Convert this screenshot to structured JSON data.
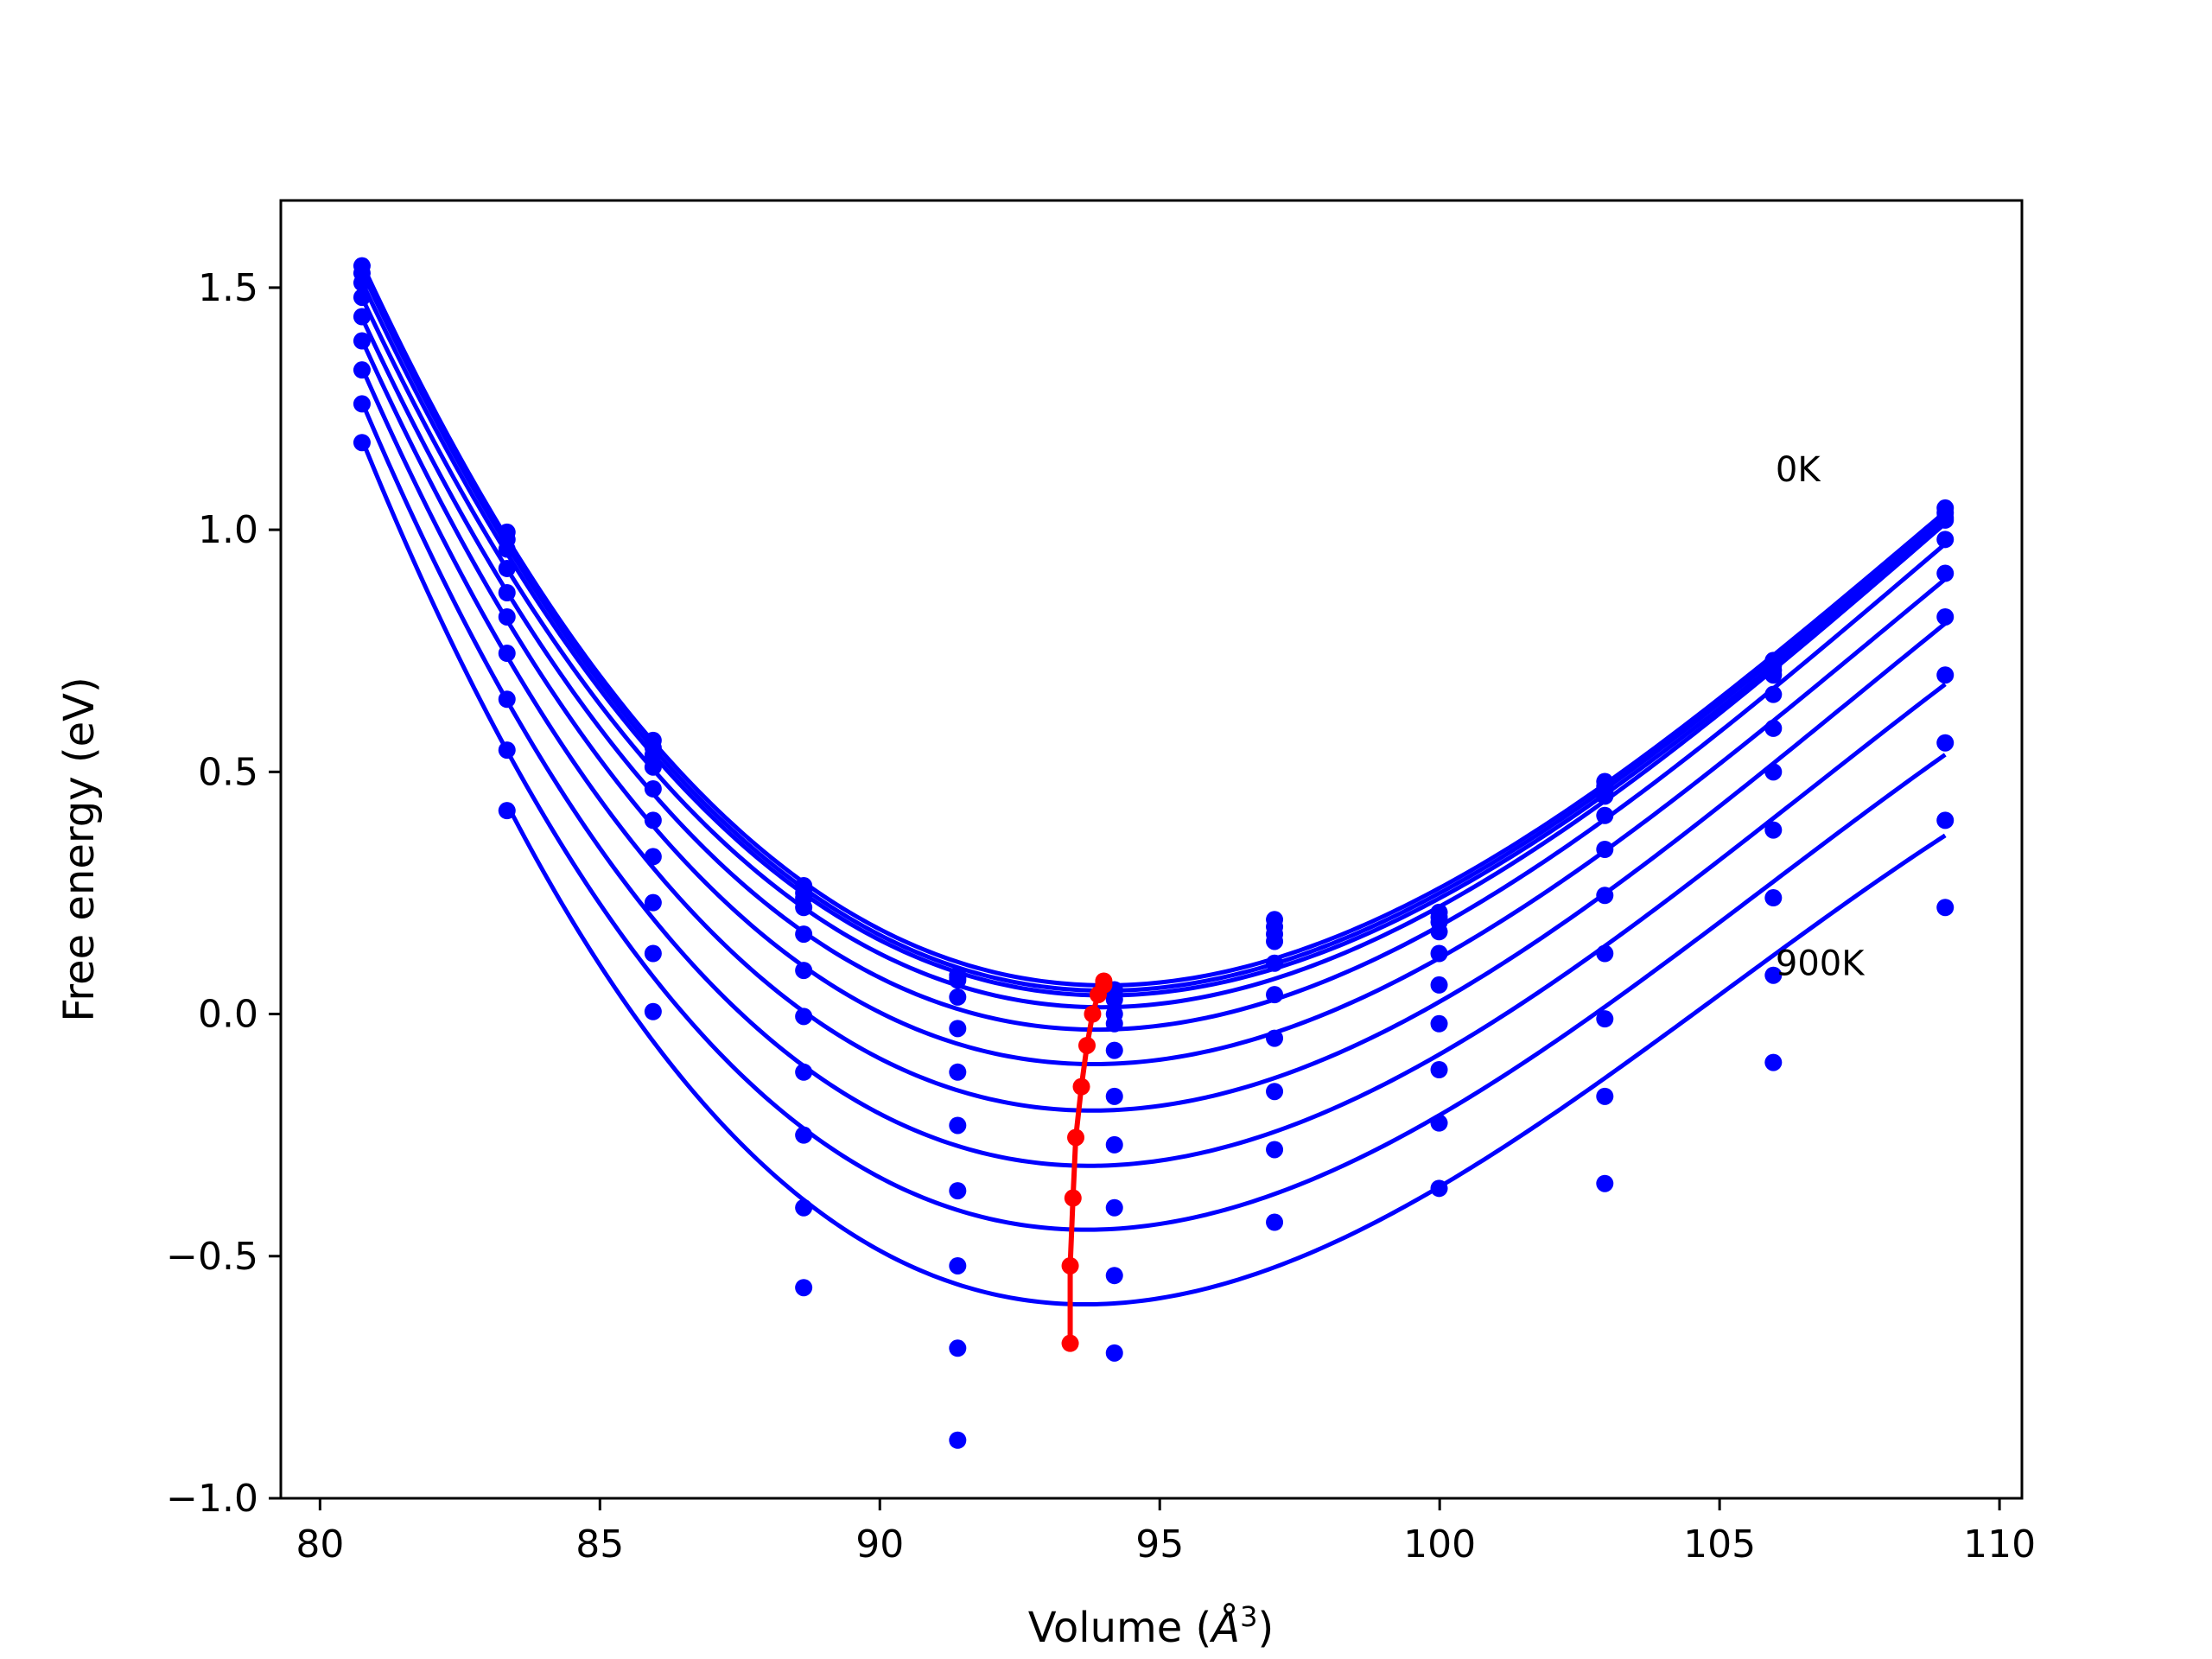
{
  "chart_data": {
    "type": "scatter",
    "title": "",
    "xlabel": "Volume (Å³)",
    "xlabel_base": "Volume (",
    "xlabel_unit": "Å",
    "xlabel_exp": "3",
    "xlabel_close": ")",
    "ylabel": "Free energy (eV)",
    "xlim": [
      79.3,
      110.4
    ],
    "ylim": [
      -1.0,
      1.68
    ],
    "grid": false,
    "x_ticks": [
      80,
      85,
      90,
      95,
      100,
      105,
      110
    ],
    "y_ticks": [
      -1.0,
      -0.5,
      0.0,
      0.5,
      1.0,
      1.5
    ],
    "x_tick_labels": [
      "80",
      "85",
      "90",
      "95",
      "100",
      "105",
      "110"
    ],
    "y_tick_labels": [
      "−1.0",
      "−0.5",
      "0.0",
      "0.5",
      "1.0",
      "1.5"
    ],
    "volumes": [
      80.75,
      83.34,
      85.95,
      88.64,
      91.39,
      94.19,
      97.05,
      99.99,
      102.95,
      105.96,
      109.03
    ],
    "annotations": [
      {
        "text": "0K",
        "x": 106.0,
        "y": 1.1
      },
      {
        "text": "900K",
        "x": 106.0,
        "y": 0.08
      }
    ],
    "colors": {
      "fit": "#0000ff",
      "minima": "#ff0000",
      "axes": "#000000"
    },
    "series": [
      {
        "points": [
          1.545,
          0.995,
          0.565,
          0.265,
          0.08,
          0.05,
          0.195,
          0.21,
          0.48,
          0.73,
          1.045
        ],
        "fit": {
          "v0": 94.0,
          "e0": 0.068
        }
      },
      {
        "points": [
          1.53,
          0.98,
          0.55,
          0.25,
          0.075,
          0.04,
          0.18,
          0.2,
          0.47,
          0.72,
          1.035
        ],
        "fit": {
          "v0": 94.0,
          "e0": 0.06
        }
      },
      {
        "points": [
          1.51,
          0.96,
          0.535,
          0.24,
          0.07,
          0.03,
          0.165,
          0.19,
          0.46,
          0.71,
          1.025
        ],
        "fit": {
          "v0": 93.9,
          "e0": 0.04
        }
      },
      {
        "points": [
          1.48,
          0.92,
          0.51,
          0.22,
          0.035,
          0.0,
          0.15,
          0.17,
          0.45,
          0.7,
          1.02
        ],
        "fit": {
          "v0": 93.8,
          "e0": 0.0
        }
      },
      {
        "points": [
          1.44,
          0.87,
          0.465,
          0.165,
          -0.03,
          -0.02,
          0.105,
          0.125,
          0.41,
          0.66,
          0.98
        ],
        "fit": {
          "v0": 93.7,
          "e0": -0.065
        }
      },
      {
        "points": [
          1.39,
          0.82,
          0.4,
          0.09,
          -0.12,
          -0.075,
          0.04,
          0.06,
          0.34,
          0.59,
          0.91
        ],
        "fit": {
          "v0": 93.6,
          "e0": -0.15
        }
      },
      {
        "points": [
          1.33,
          0.745,
          0.325,
          -0.005,
          -0.23,
          -0.17,
          -0.05,
          -0.02,
          0.245,
          0.5,
          0.82
        ],
        "fit": {
          "v0": 93.5,
          "e0": -0.255
        }
      },
      {
        "points": [
          1.26,
          0.65,
          0.23,
          -0.12,
          -0.365,
          -0.27,
          -0.16,
          -0.115,
          0.125,
          0.38,
          0.7
        ],
        "fit": {
          "v0": 93.45,
          "e0": -0.38
        }
      },
      {
        "points": [
          1.18,
          0.545,
          0.125,
          -0.25,
          -0.52,
          -0.4,
          -0.28,
          -0.225,
          -0.01,
          0.24,
          0.56
        ],
        "fit": {
          "v0": 93.4,
          "e0": -0.52
        }
      },
      {
        "points": [
          null,
          0.42,
          0.005,
          -0.4,
          -0.69,
          -0.54,
          -0.43,
          -0.36,
          -0.17,
          0.08,
          0.4
        ],
        "fit": {
          "v0": 93.4,
          "e0": -0.68
        }
      },
      {
        "points": [
          null,
          null,
          null,
          -0.565,
          -0.88,
          -0.7,
          null,
          null,
          -0.35,
          -0.1,
          0.22
        ],
        "fit": null
      }
    ],
    "minima_line": [
      {
        "x": 94.0,
        "y": 0.068
      },
      {
        "x": 94.0,
        "y": 0.06
      },
      {
        "x": 93.9,
        "y": 0.04
      },
      {
        "x": 93.8,
        "y": 0.0
      },
      {
        "x": 93.7,
        "y": -0.065
      },
      {
        "x": 93.6,
        "y": -0.15
      },
      {
        "x": 93.5,
        "y": -0.255
      },
      {
        "x": 93.45,
        "y": -0.38
      },
      {
        "x": 93.4,
        "y": -0.52
      },
      {
        "x": 93.4,
        "y": -0.68
      }
    ]
  }
}
